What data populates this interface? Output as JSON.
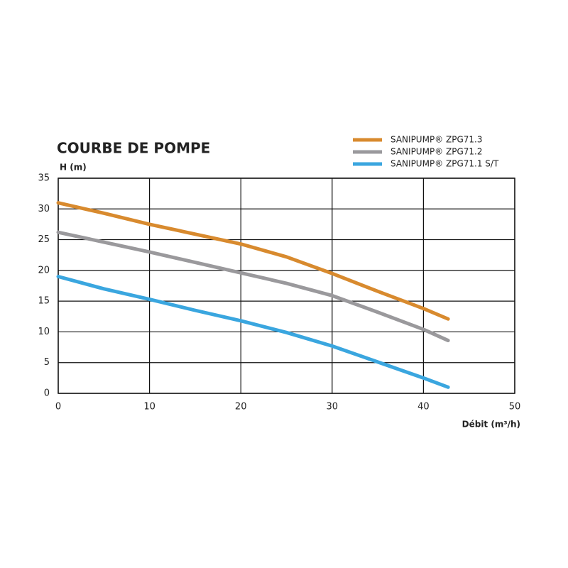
{
  "chart_data": {
    "type": "line",
    "title": "COURBE DE POMPE",
    "y_label": "H (m)",
    "x_label": "Débit (m³/h)",
    "x": [
      0,
      5,
      10,
      15,
      20,
      25,
      30,
      35,
      40,
      42.7
    ],
    "series": [
      {
        "name": "SANIPUMP® ZPG71.3",
        "color": "#d88a2e",
        "values": [
          31,
          29.3,
          27.5,
          25.9,
          24.3,
          22.2,
          19.5,
          16.6,
          13.8,
          12.1
        ]
      },
      {
        "name": "SANIPUMP® ZPG71.2",
        "color": "#9a999c",
        "values": [
          26.2,
          24.6,
          23,
          21.3,
          19.6,
          17.9,
          15.9,
          13.2,
          10.4,
          8.6
        ]
      },
      {
        "name": "SANIPUMP® ZPG71.1 S/T",
        "color": "#3aa6df",
        "values": [
          19,
          17,
          15.3,
          13.5,
          11.8,
          9.9,
          7.7,
          5.1,
          2.5,
          1
        ]
      }
    ],
    "xlim": [
      0,
      50
    ],
    "xticks": [
      0,
      10,
      20,
      30,
      40,
      50
    ],
    "ylim": [
      0,
      35
    ],
    "yticks": [
      0,
      5,
      10,
      15,
      20,
      25,
      30,
      35
    ],
    "grid": true,
    "legend": "top-right"
  }
}
